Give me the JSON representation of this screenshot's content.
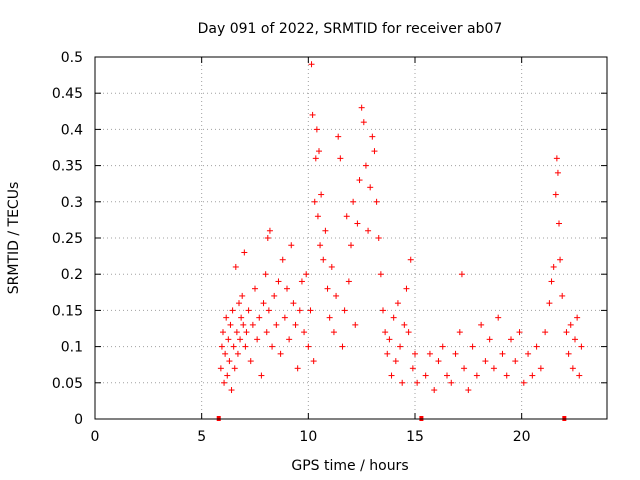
{
  "chart_data": {
    "type": "scatter",
    "title": "Day 091 of 2022, SRMTID for receiver ab07",
    "xlabel": "GPS time / hours",
    "ylabel": "SRMTID / TECUs",
    "xlim": [
      0,
      24
    ],
    "ylim": [
      0,
      0.5
    ],
    "xticks": [
      0,
      5,
      10,
      15,
      20
    ],
    "yticks": [
      0,
      0.05,
      0.1,
      0.15,
      0.2,
      0.25,
      0.3,
      0.35,
      0.4,
      0.45,
      0.5
    ],
    "grid": true,
    "marker": "+",
    "color": "#ff0000",
    "zero_points_x": [
      5.8,
      15.3,
      22.0
    ],
    "series": [
      {
        "name": "SRMTID",
        "points": [
          [
            5.9,
            0.07
          ],
          [
            5.95,
            0.1
          ],
          [
            6.0,
            0.12
          ],
          [
            6.05,
            0.05
          ],
          [
            6.1,
            0.09
          ],
          [
            6.15,
            0.14
          ],
          [
            6.2,
            0.06
          ],
          [
            6.25,
            0.11
          ],
          [
            6.3,
            0.08
          ],
          [
            6.35,
            0.13
          ],
          [
            6.4,
            0.04
          ],
          [
            6.45,
            0.15
          ],
          [
            6.5,
            0.1
          ],
          [
            6.55,
            0.07
          ],
          [
            6.6,
            0.21
          ],
          [
            6.65,
            0.12
          ],
          [
            6.7,
            0.09
          ],
          [
            6.75,
            0.16
          ],
          [
            6.8,
            0.11
          ],
          [
            6.85,
            0.14
          ],
          [
            6.9,
            0.17
          ],
          [
            6.95,
            0.13
          ],
          [
            7.0,
            0.23
          ],
          [
            7.05,
            0.1
          ],
          [
            7.1,
            0.12
          ],
          [
            7.2,
            0.15
          ],
          [
            7.3,
            0.08
          ],
          [
            7.4,
            0.13
          ],
          [
            7.5,
            0.18
          ],
          [
            7.6,
            0.11
          ],
          [
            7.7,
            0.14
          ],
          [
            7.8,
            0.06
          ],
          [
            7.9,
            0.16
          ],
          [
            8.0,
            0.2
          ],
          [
            8.05,
            0.12
          ],
          [
            8.1,
            0.25
          ],
          [
            8.15,
            0.15
          ],
          [
            8.2,
            0.26
          ],
          [
            8.3,
            0.1
          ],
          [
            8.4,
            0.17
          ],
          [
            8.5,
            0.13
          ],
          [
            8.6,
            0.19
          ],
          [
            8.7,
            0.09
          ],
          [
            8.8,
            0.22
          ],
          [
            8.9,
            0.14
          ],
          [
            9.0,
            0.18
          ],
          [
            9.1,
            0.11
          ],
          [
            9.2,
            0.24
          ],
          [
            9.3,
            0.16
          ],
          [
            9.4,
            0.13
          ],
          [
            9.5,
            0.07
          ],
          [
            9.6,
            0.15
          ],
          [
            9.7,
            0.19
          ],
          [
            9.8,
            0.12
          ],
          [
            9.9,
            0.2
          ],
          [
            10.0,
            0.1
          ],
          [
            10.1,
            0.15
          ],
          [
            10.15,
            0.49
          ],
          [
            10.2,
            0.42
          ],
          [
            10.25,
            0.08
          ],
          [
            10.3,
            0.3
          ],
          [
            10.35,
            0.36
          ],
          [
            10.4,
            0.4
          ],
          [
            10.45,
            0.28
          ],
          [
            10.5,
            0.37
          ],
          [
            10.55,
            0.24
          ],
          [
            10.6,
            0.31
          ],
          [
            10.7,
            0.22
          ],
          [
            10.8,
            0.26
          ],
          [
            10.9,
            0.18
          ],
          [
            11.0,
            0.14
          ],
          [
            11.1,
            0.21
          ],
          [
            11.2,
            0.12
          ],
          [
            11.3,
            0.17
          ],
          [
            11.4,
            0.39
          ],
          [
            11.5,
            0.36
          ],
          [
            11.6,
            0.1
          ],
          [
            11.7,
            0.15
          ],
          [
            11.8,
            0.28
          ],
          [
            11.9,
            0.19
          ],
          [
            12.0,
            0.24
          ],
          [
            12.1,
            0.3
          ],
          [
            12.2,
            0.13
          ],
          [
            12.3,
            0.27
          ],
          [
            12.4,
            0.33
          ],
          [
            12.5,
            0.43
          ],
          [
            12.6,
            0.41
          ],
          [
            12.7,
            0.35
          ],
          [
            12.8,
            0.26
          ],
          [
            12.9,
            0.32
          ],
          [
            13.0,
            0.39
          ],
          [
            13.1,
            0.37
          ],
          [
            13.2,
            0.3
          ],
          [
            13.3,
            0.25
          ],
          [
            13.4,
            0.2
          ],
          [
            13.5,
            0.15
          ],
          [
            13.6,
            0.12
          ],
          [
            13.7,
            0.09
          ],
          [
            13.8,
            0.11
          ],
          [
            13.9,
            0.06
          ],
          [
            14.0,
            0.14
          ],
          [
            14.1,
            0.08
          ],
          [
            14.2,
            0.16
          ],
          [
            14.3,
            0.1
          ],
          [
            14.4,
            0.05
          ],
          [
            14.5,
            0.13
          ],
          [
            14.6,
            0.18
          ],
          [
            14.7,
            0.12
          ],
          [
            14.8,
            0.22
          ],
          [
            14.9,
            0.07
          ],
          [
            15.0,
            0.09
          ],
          [
            15.1,
            0.05
          ],
          [
            15.5,
            0.06
          ],
          [
            15.7,
            0.09
          ],
          [
            15.9,
            0.04
          ],
          [
            16.1,
            0.08
          ],
          [
            16.3,
            0.1
          ],
          [
            16.5,
            0.06
          ],
          [
            16.7,
            0.05
          ],
          [
            16.9,
            0.09
          ],
          [
            17.1,
            0.12
          ],
          [
            17.2,
            0.2
          ],
          [
            17.3,
            0.07
          ],
          [
            17.5,
            0.04
          ],
          [
            17.7,
            0.1
          ],
          [
            17.9,
            0.06
          ],
          [
            18.1,
            0.13
          ],
          [
            18.3,
            0.08
          ],
          [
            18.5,
            0.11
          ],
          [
            18.7,
            0.07
          ],
          [
            18.9,
            0.14
          ],
          [
            19.1,
            0.09
          ],
          [
            19.3,
            0.06
          ],
          [
            19.5,
            0.11
          ],
          [
            19.7,
            0.08
          ],
          [
            19.9,
            0.12
          ],
          [
            20.1,
            0.05
          ],
          [
            20.3,
            0.09
          ],
          [
            20.5,
            0.06
          ],
          [
            20.7,
            0.1
          ],
          [
            20.9,
            0.07
          ],
          [
            21.1,
            0.12
          ],
          [
            21.3,
            0.16
          ],
          [
            21.4,
            0.19
          ],
          [
            21.5,
            0.21
          ],
          [
            21.6,
            0.31
          ],
          [
            21.65,
            0.36
          ],
          [
            21.7,
            0.34
          ],
          [
            21.75,
            0.27
          ],
          [
            21.8,
            0.22
          ],
          [
            21.9,
            0.17
          ],
          [
            22.1,
            0.12
          ],
          [
            22.2,
            0.09
          ],
          [
            22.3,
            0.13
          ],
          [
            22.4,
            0.07
          ],
          [
            22.5,
            0.11
          ],
          [
            22.6,
            0.14
          ],
          [
            22.7,
            0.06
          ],
          [
            22.8,
            0.1
          ]
        ]
      }
    ]
  }
}
